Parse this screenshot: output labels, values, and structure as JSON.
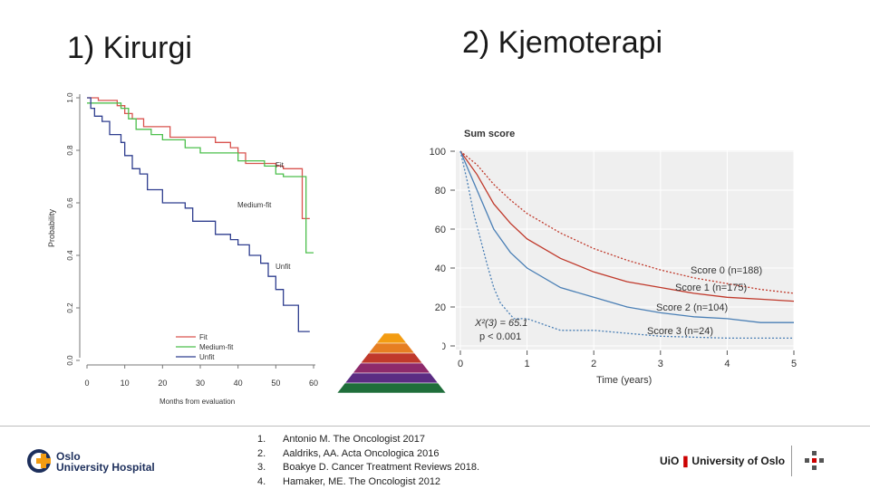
{
  "slide": {
    "title_left": "1) Kirurgi",
    "title_right": "2) Kjemoterapi"
  },
  "chart_data": [
    {
      "type": "line",
      "step": true,
      "title": "",
      "xlabel": "Months from evaluation",
      "ylabel": "Probability",
      "xlim": [
        0,
        60
      ],
      "ylim": [
        0.0,
        1.0
      ],
      "x_ticks": [
        "0",
        "10",
        "20",
        "30",
        "40",
        "50",
        "60"
      ],
      "y_ticks": [
        "0.0",
        "0.2",
        "0.4",
        "0.6",
        "0.8",
        "1.0"
      ],
      "legend": [
        "Fit",
        "Medium-fit",
        "Unfit"
      ],
      "legend_position": "bottom-center",
      "series": [
        {
          "name": "Fit",
          "color": "#d9534f",
          "x": [
            0,
            3,
            8,
            10,
            12,
            15,
            22,
            34,
            38,
            40,
            42,
            50,
            52,
            57,
            59
          ],
          "y": [
            1.0,
            0.99,
            0.97,
            0.94,
            0.92,
            0.89,
            0.85,
            0.83,
            0.81,
            0.79,
            0.75,
            0.74,
            0.73,
            0.54,
            0.54
          ]
        },
        {
          "name": "Medium-fit",
          "color": "#4cbf4c",
          "x": [
            0,
            3,
            9,
            11,
            13,
            17,
            20,
            26,
            30,
            40,
            47,
            50,
            52,
            58,
            60
          ],
          "y": [
            0.98,
            0.98,
            0.96,
            0.92,
            0.88,
            0.86,
            0.84,
            0.81,
            0.79,
            0.76,
            0.74,
            0.71,
            0.7,
            0.41,
            0.41
          ]
        },
        {
          "name": "Unfit",
          "color": "#2f3e8f",
          "x": [
            0,
            1,
            2,
            4,
            6,
            9,
            10,
            12,
            14,
            16,
            20,
            26,
            28,
            34,
            38,
            40,
            43,
            46,
            48,
            50,
            52,
            56,
            59
          ],
          "y": [
            1.0,
            0.96,
            0.93,
            0.91,
            0.86,
            0.83,
            0.78,
            0.73,
            0.71,
            0.65,
            0.6,
            0.58,
            0.53,
            0.48,
            0.46,
            0.44,
            0.4,
            0.37,
            0.32,
            0.27,
            0.21,
            0.11,
            0.11
          ]
        }
      ],
      "annotations": [
        "Fit",
        "Medium-fit",
        "Unfit"
      ]
    },
    {
      "type": "line",
      "title": "Sum score",
      "xlabel": "Time (years)",
      "ylabel": "",
      "xlim": [
        0,
        5
      ],
      "ylim": [
        0,
        100
      ],
      "x_ticks": [
        "0",
        "1",
        "2",
        "3",
        "4",
        "5"
      ],
      "y_ticks": [
        "0",
        "20",
        "40",
        "60",
        "80",
        "100"
      ],
      "grid": true,
      "series": [
        {
          "name": "Score 0 (n=188)",
          "color": "#c0392b",
          "dashed": true,
          "x": [
            0,
            0.25,
            0.5,
            0.75,
            1.0,
            1.5,
            2.0,
            2.5,
            3.0,
            3.5,
            4.0,
            4.5,
            5.0
          ],
          "y": [
            100,
            93,
            83,
            75,
            68,
            58,
            50,
            44,
            39,
            35,
            32,
            29,
            27
          ]
        },
        {
          "name": "Score 1 (n=175)",
          "color": "#c0392b",
          "dashed": false,
          "x": [
            0,
            0.25,
            0.5,
            0.75,
            1.0,
            1.5,
            2.0,
            2.5,
            3.0,
            3.5,
            4.0,
            4.5,
            5.0
          ],
          "y": [
            100,
            88,
            73,
            63,
            55,
            45,
            38,
            33,
            30,
            27,
            25,
            24,
            23
          ]
        },
        {
          "name": "Score 2 (n=104)",
          "color": "#4a7fb5",
          "dashed": false,
          "x": [
            0,
            0.25,
            0.5,
            0.75,
            1.0,
            1.5,
            2.0,
            2.5,
            3.0,
            3.5,
            4.0,
            4.5,
            5.0
          ],
          "y": [
            100,
            80,
            60,
            48,
            40,
            30,
            25,
            20,
            17,
            15,
            14,
            12,
            12
          ]
        },
        {
          "name": "Score 3 (n=24)",
          "color": "#4a7fb5",
          "dashed": true,
          "x": [
            0,
            0.1,
            0.2,
            0.3,
            0.4,
            0.5,
            0.6,
            0.8,
            1.0,
            1.5,
            2.0,
            3.0,
            4.0,
            5.0
          ],
          "y": [
            100,
            85,
            68,
            55,
            42,
            30,
            22,
            14,
            14,
            8,
            8,
            5,
            4,
            4
          ]
        }
      ],
      "annotations": [
        "Score 0 (n=188)",
        "Score 1 (n=175)",
        "Score 2 (n=104)",
        "Score 3 (n=24)",
        "X²(3) = 65.1",
        "p < 0.001"
      ]
    }
  ],
  "references": [
    {
      "num": "1.",
      "text": "Antonio M. The Oncologist 2017"
    },
    {
      "num": "2.",
      "text": "Aaldriks, AA. Acta Oncologica 2016"
    },
    {
      "num": "3.",
      "text": "Boakye D. Cancer Treatment Reviews 2018."
    },
    {
      "num": "4.",
      "text": "Hamaker, ME. The Oncologist 2012"
    }
  ],
  "logos": {
    "left": {
      "line1": "Oslo",
      "line2": "University Hospital",
      "color": "#1d2f5c",
      "accent": "#f39c12"
    },
    "right": {
      "uio": "UiO",
      "separator": "❚",
      "name": "University of Oslo"
    }
  },
  "colors": {
    "pyramid": [
      "#f39c12",
      "#e67e22",
      "#c0392b",
      "#8e2a6b",
      "#5b2c83",
      "#1f6e3b"
    ]
  }
}
